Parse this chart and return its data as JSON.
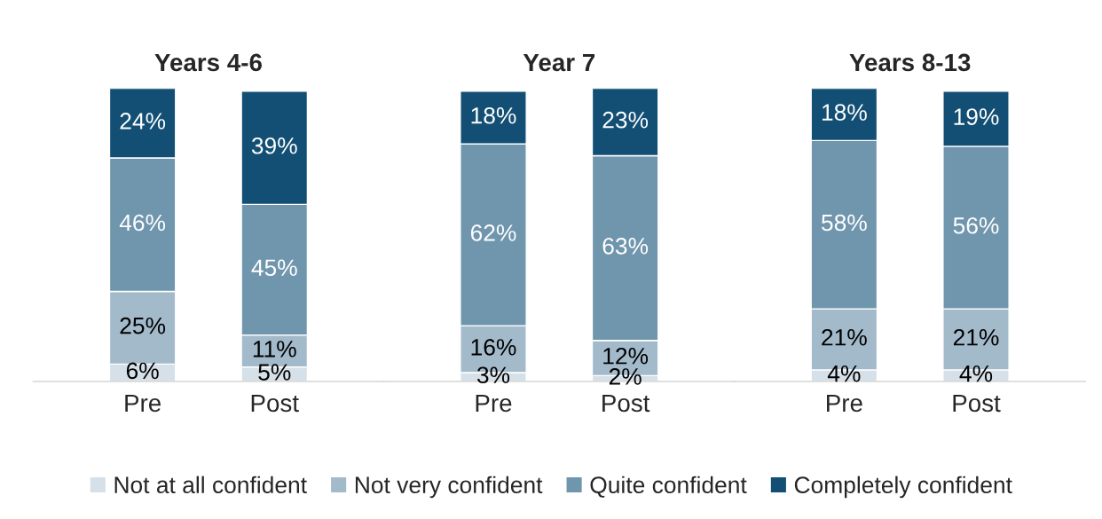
{
  "chart_data": [
    {
      "type": "bar",
      "title": "Years 4-6",
      "categories": [
        "Pre",
        "Post"
      ],
      "stacked": true,
      "grid": false,
      "legend": "bottom",
      "tick_labels": "x",
      "series": [
        {
          "name": "Not at all confident",
          "color": "#d6e0e8",
          "values": [
            6,
            5
          ],
          "value_labels": [
            "6%",
            "5%"
          ]
        },
        {
          "name": "Not very confident",
          "color": "#a3bacb",
          "values": [
            25,
            11
          ],
          "value_labels": [
            "25%",
            "11%"
          ]
        },
        {
          "name": "Quite confident",
          "color": "#7096ae",
          "values": [
            46,
            45
          ],
          "value_labels": [
            "46%",
            "45%"
          ]
        },
        {
          "name": "Completely confident",
          "color": "#134f74",
          "values": [
            24,
            39
          ],
          "value_labels": [
            "24%",
            "39%"
          ]
        }
      ]
    },
    {
      "type": "bar",
      "title": "Year 7",
      "categories": [
        "Pre",
        "Post"
      ],
      "stacked": true,
      "grid": false,
      "tick_labels": "x",
      "series": [
        {
          "color": "#d6e0e8",
          "values": [
            3,
            2
          ],
          "value_labels": [
            "3%",
            "2%"
          ]
        },
        {
          "color": "#a3bacb",
          "values": [
            16,
            12
          ],
          "value_labels": [
            "16%",
            "12%"
          ]
        },
        {
          "color": "#7096ae",
          "values": [
            62,
            63
          ],
          "value_labels": [
            "62%",
            "63%"
          ]
        },
        {
          "color": "#134f74",
          "values": [
            18,
            23
          ],
          "value_labels": [
            "18%",
            "23%"
          ]
        }
      ]
    },
    {
      "type": "bar",
      "title": "Years 8-13",
      "categories": [
        "Pre",
        "Post"
      ],
      "stacked": true,
      "grid": false,
      "tick_labels": "x",
      "series": [
        {
          "color": "#d6e0e8",
          "values": [
            4,
            4
          ],
          "value_labels": [
            "4%",
            "4%"
          ]
        },
        {
          "color": "#a3bacb",
          "values": [
            21,
            21
          ],
          "value_labels": [
            "21%",
            "21%"
          ]
        },
        {
          "color": "#7096ae",
          "values": [
            58,
            56
          ],
          "value_labels": [
            "58%",
            "56%"
          ]
        },
        {
          "color": "#134f74",
          "values": [
            18,
            19
          ],
          "value_labels": [
            "18%",
            "19%"
          ]
        }
      ]
    }
  ]
}
